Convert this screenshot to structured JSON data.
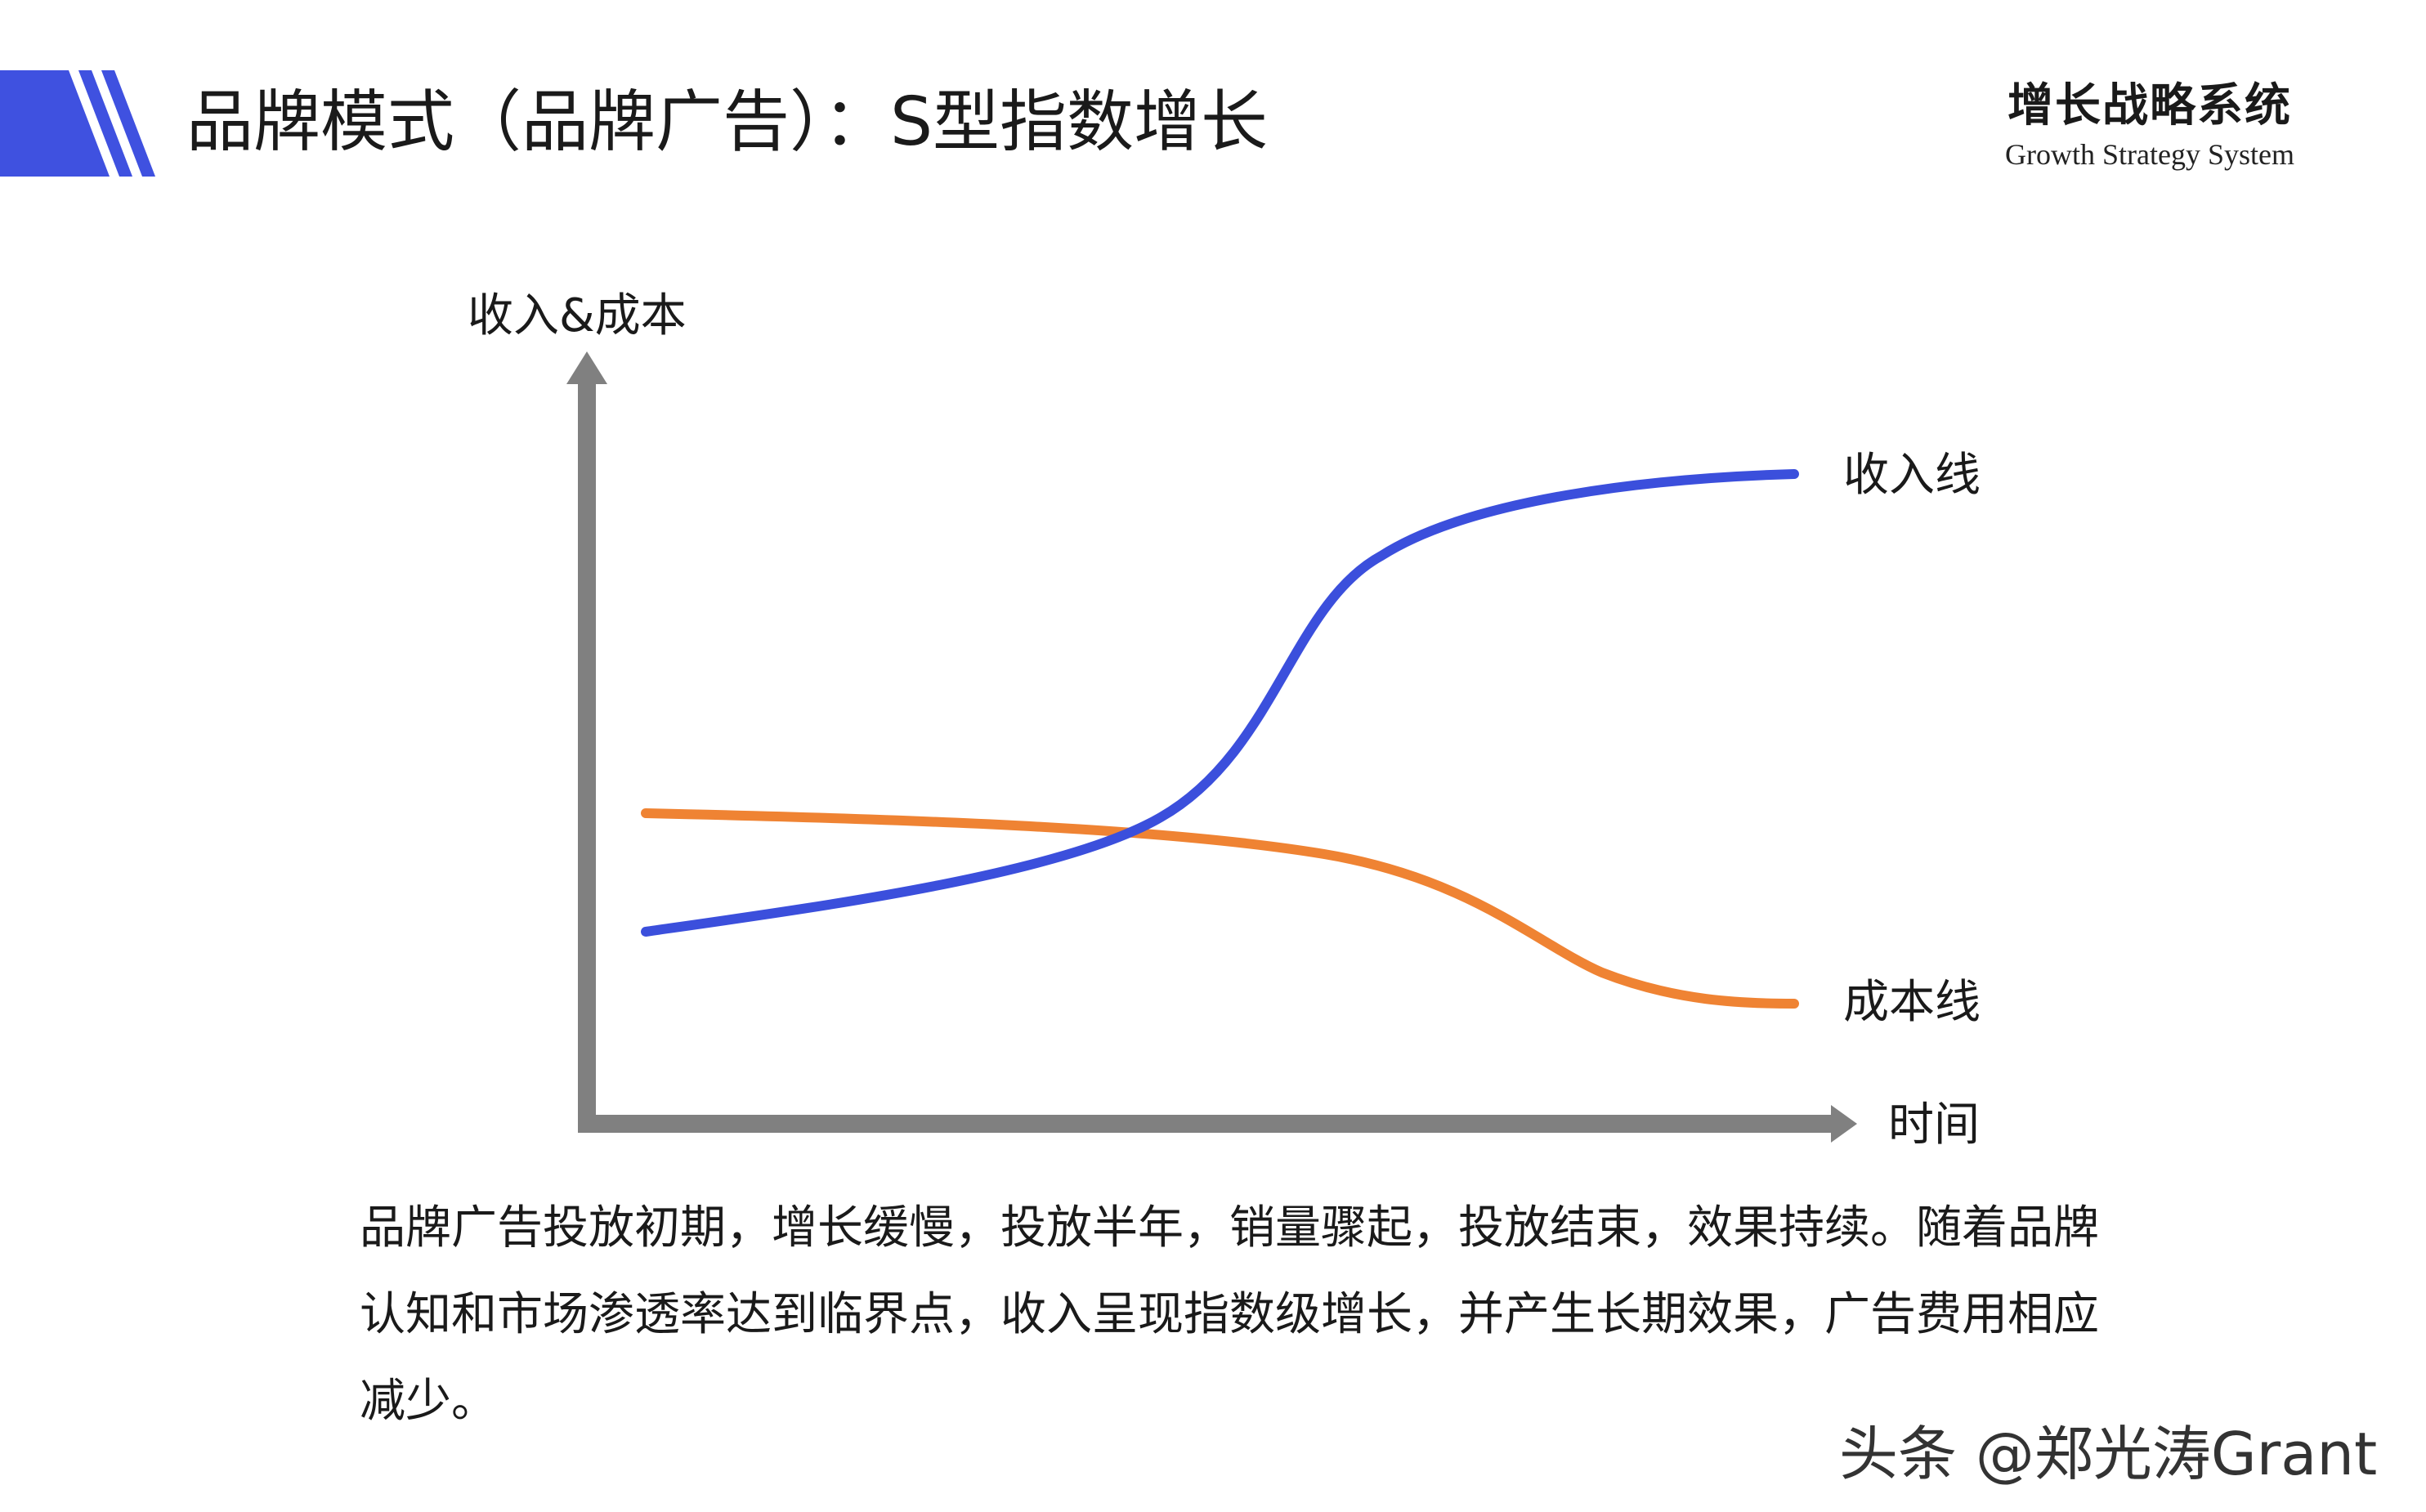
{
  "header": {
    "title": "品牌模式（品牌广告）：S型指数增长",
    "brand_cn": "增长战略系统",
    "brand_en": "Growth Strategy System",
    "accent_color": "#3f51e0"
  },
  "diagram": {
    "y_axis_label": "收入&成本",
    "x_axis_label": "时间",
    "revenue_label": "收入线",
    "cost_label": "成本线",
    "revenue_color": "#3b4fdc",
    "cost_color": "#ef8333",
    "axis_color": "#808080"
  },
  "description": "品牌广告投放初期，增长缓慢，投放半年，销量骤起，投放结束，效果持续。随着品牌认知和市场渗透率达到临界点，收入呈现指数级增长，并产生长期效果，广告费用相应减少。",
  "watermark": "头条 @郑光涛Grant"
}
